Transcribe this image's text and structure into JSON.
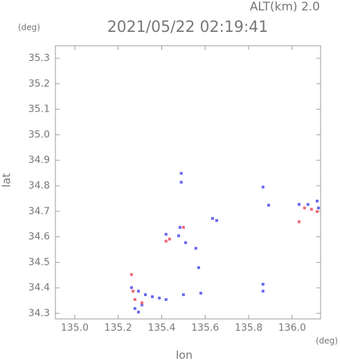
{
  "chart_data": {
    "type": "scatter",
    "title": "2021/05/22 02:19:41",
    "subtitle": "ALT(km) 2.0",
    "y_unit": "(deg)",
    "x_unit": "(deg)",
    "x_label": "lon",
    "y_label": "lat",
    "xlim": [
      134.911,
      136.131
    ],
    "ylim": [
      34.278,
      35.349
    ],
    "xticks": [
      {
        "value": 135.0,
        "label": "135.0"
      },
      135.2,
      135.4,
      135.6,
      135.8,
      {
        "value": 136.0,
        "label": "136.0"
      }
    ],
    "yticks": [
      34.3,
      34.4,
      34.5,
      34.6,
      34.7,
      34.8,
      34.9,
      {
        "value": 35.0,
        "label": "35.0"
      },
      35.1,
      35.2,
      35.3
    ],
    "series": [
      {
        "color": "#6a6af0",
        "x": [
          135.49,
          135.49,
          135.866,
          135.892,
          136.032,
          136.073,
          136.115,
          136.121,
          135.634,
          135.653,
          135.42,
          135.478,
          135.51,
          135.557,
          135.57,
          135.866,
          135.866,
          135.261,
          135.293,
          135.325,
          135.357,
          135.389,
          135.42,
          135.309,
          135.277,
          135.5,
          135.58,
          135.293,
          135.484
        ],
        "values": [
          34.849,
          34.814,
          34.795,
          34.724,
          34.727,
          34.727,
          34.74,
          34.713,
          34.672,
          34.664,
          34.61,
          34.604,
          34.577,
          34.555,
          34.479,
          34.414,
          34.387,
          34.401,
          34.387,
          34.373,
          34.365,
          34.36,
          34.354,
          34.333,
          34.319,
          34.373,
          34.379,
          34.305,
          34.637
        ]
      },
      {
        "color": "#f06a7a",
        "x": [
          136.032,
          136.057,
          136.089,
          136.115,
          135.42,
          135.436,
          135.5,
          135.261,
          135.277,
          135.309,
          135.268
        ],
        "values": [
          34.659,
          34.713,
          34.708,
          34.699,
          34.583,
          34.591,
          34.637,
          34.452,
          34.354,
          34.341,
          34.387
        ]
      }
    ]
  }
}
